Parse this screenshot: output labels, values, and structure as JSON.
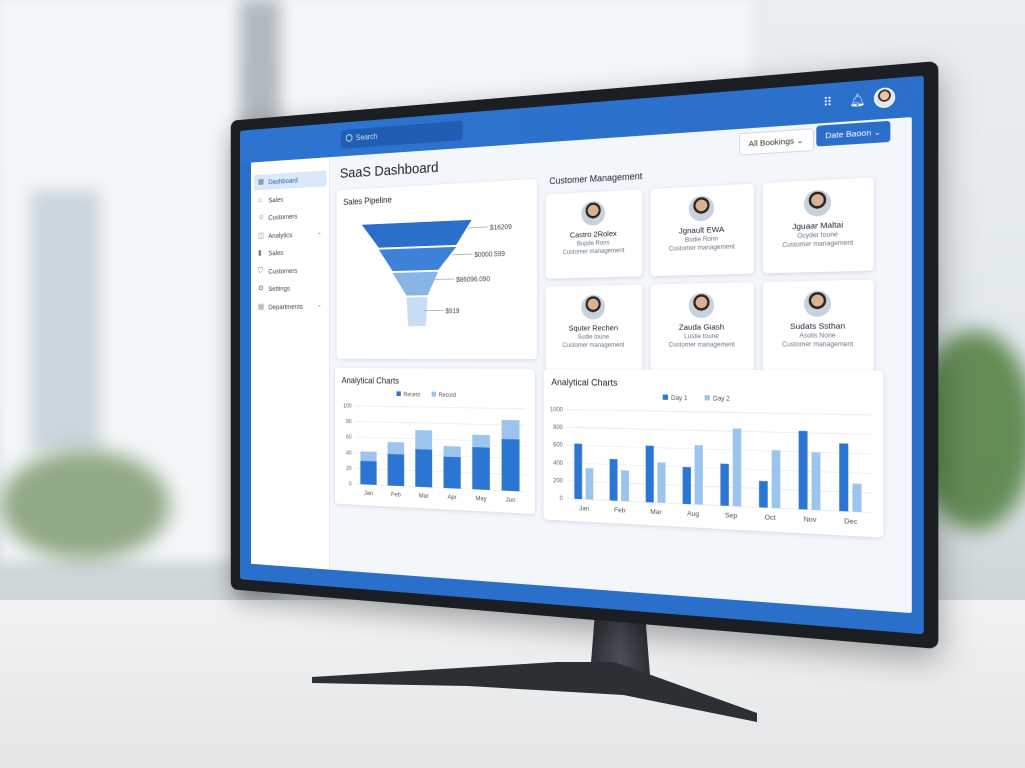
{
  "header": {
    "search_placeholder": "Search",
    "grid_icon": "grid-icon",
    "bell_icon": "bell-icon"
  },
  "toolbar": {
    "filter_label": "All Bookings",
    "primary_label": "Date Baoon"
  },
  "sidebar": {
    "items": [
      {
        "label": "Dashboard",
        "icon": "dashboard-icon",
        "active": true
      },
      {
        "label": "Sales",
        "icon": "home-icon"
      },
      {
        "label": "Customers",
        "icon": "user-icon"
      },
      {
        "label": "Analytics",
        "icon": "analytics-icon",
        "chevron": true
      },
      {
        "label": "Sales",
        "icon": "bar-chart-icon"
      },
      {
        "label": "Customers",
        "icon": "shield-icon"
      },
      {
        "label": "Settings",
        "icon": "gear-icon"
      },
      {
        "label": "Departments",
        "icon": "calendar-icon",
        "chevron": true
      }
    ]
  },
  "page_title": "SaaS Dashboard",
  "pipeline": {
    "title": "Sales Pipeline",
    "stages": [
      {
        "label": "$16209"
      },
      {
        "label": "$0000.599"
      },
      {
        "label": "$86096.090"
      },
      {
        "label": "$919"
      }
    ]
  },
  "customers": {
    "title": "Customer Management",
    "people": [
      {
        "name": "Castro 2Rolex",
        "role": "Bupde Rons",
        "dept": "Customer management"
      },
      {
        "name": "Jgnault EWA",
        "role": "Bodie Ronn",
        "dept": "Customer management"
      },
      {
        "name": "Jguaar Maltai",
        "role": "Ocyder toune",
        "dept": "Customer management"
      },
      {
        "name": "Squter Rechen",
        "role": "Sudle toune",
        "dept": "Customer management"
      },
      {
        "name": "Zauda Giash",
        "role": "Lustie toune",
        "dept": "Customer management"
      },
      {
        "name": "Sudats Ssthan",
        "role": "Asolis None",
        "dept": "Customer management"
      }
    ]
  },
  "colors": {
    "dark": "#2a76d2",
    "light": "#9cc4ec",
    "brand": "#2b6fca"
  },
  "chart_data": [
    {
      "type": "bar",
      "stacked": true,
      "title": "Analytical Charts",
      "categories": [
        "Jan",
        "Feb",
        "Mar",
        "Apr",
        "May",
        "Jun"
      ],
      "series": [
        {
          "name": "Recent",
          "values": [
            30,
            40,
            47,
            39,
            52,
            63
          ]
        },
        {
          "name": "Record",
          "values": [
            12,
            15,
            24,
            13,
            15,
            23
          ]
        }
      ],
      "yticks": [
        0,
        20,
        40,
        60,
        80,
        100
      ],
      "ylim": [
        0,
        100
      ],
      "grid": true,
      "legend": "top"
    },
    {
      "type": "bar",
      "stacked": false,
      "title": "Analytical Charts",
      "categories": [
        "Jan",
        "Feb",
        "Mar",
        "Aug",
        "Sep",
        "Oct",
        "Nov",
        "Dec"
      ],
      "series": [
        {
          "name": "Day 1",
          "values": [
            620,
            460,
            620,
            400,
            450,
            280,
            820,
            700
          ]
        },
        {
          "name": "Day 2",
          "values": [
            350,
            340,
            440,
            640,
            830,
            610,
            600,
            290
          ]
        }
      ],
      "yticks": [
        0,
        200,
        400,
        600,
        800,
        1000
      ],
      "ylim": [
        0,
        1000
      ],
      "grid": true,
      "legend": "top"
    }
  ]
}
